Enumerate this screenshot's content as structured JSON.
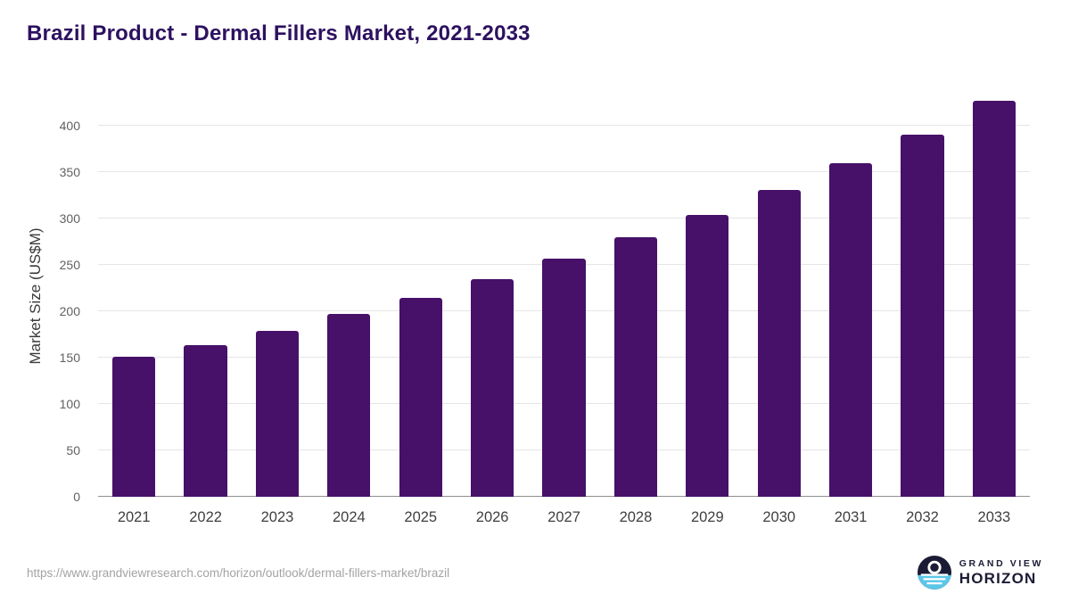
{
  "title": "Brazil Product - Dermal Fillers Market, 2021-2033",
  "footer": {
    "source_url": "https://www.grandviewresearch.com/horizon/outlook/dermal-fillers-market/brazil",
    "logo_top": "GRAND VIEW",
    "logo_bottom": "HORIZON"
  },
  "colors": {
    "bar": "#471069",
    "title": "#2d1160",
    "grid": "#e5e5e5",
    "axis_text": "#616161",
    "logo_navy": "#1b1b35",
    "logo_blue": "#5bc6e8"
  },
  "chart_data": {
    "type": "bar",
    "title": "Brazil Product - Dermal Fillers Market, 2021-2033",
    "xlabel": "",
    "ylabel": "Market Size (US$M)",
    "categories": [
      "2021",
      "2022",
      "2023",
      "2024",
      "2025",
      "2026",
      "2027",
      "2028",
      "2029",
      "2030",
      "2031",
      "2032",
      "2033"
    ],
    "values": [
      151,
      164,
      179,
      197,
      215,
      235,
      257,
      280,
      304,
      331,
      360,
      391,
      427
    ],
    "yticks": [
      0,
      50,
      100,
      150,
      200,
      250,
      300,
      350,
      400
    ],
    "ylim": [
      0,
      435
    ],
    "grid": true,
    "legend_position": "none",
    "bar_color": "#471069"
  }
}
